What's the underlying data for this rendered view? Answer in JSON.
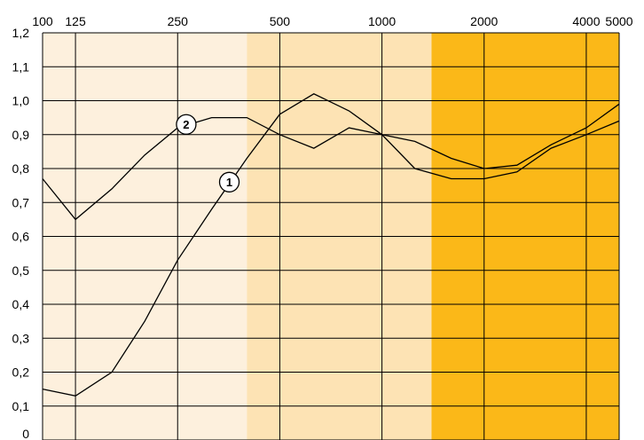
{
  "chart_data": {
    "type": "line",
    "x_scale": "log",
    "x_ticks": [
      "100",
      "125",
      "250",
      "500",
      "1000",
      "2000",
      "4000",
      "5000"
    ],
    "x_tick_values": [
      100,
      125,
      250,
      500,
      1000,
      2000,
      4000,
      5000
    ],
    "y_ticks": [
      "0",
      "0,1",
      "0,2",
      "0,3",
      "0,4",
      "0,5",
      "0,6",
      "0,7",
      "0,8",
      "0,9",
      "1,0",
      "1,1",
      "1,2"
    ],
    "y_tick_values": [
      0,
      0.1,
      0.2,
      0.3,
      0.4,
      0.5,
      0.6,
      0.7,
      0.8,
      0.9,
      1.0,
      1.1,
      1.2
    ],
    "xlim": [
      100,
      5000
    ],
    "ylim": [
      0,
      1.2
    ],
    "grid": true,
    "bands": [
      {
        "from": 100,
        "to": 400,
        "color": "#fdf0dd"
      },
      {
        "from": 400,
        "to": 1400,
        "color": "#fde3b4"
      },
      {
        "from": 1400,
        "to": 5000,
        "color": "#fbb818"
      }
    ],
    "series": [
      {
        "name": "1",
        "x": [
          100,
          125,
          160,
          200,
          250,
          315,
          400,
          500,
          630,
          800,
          1000,
          1250,
          1600,
          2000,
          2500,
          3150,
          4000,
          5000
        ],
        "y": [
          0.15,
          0.13,
          0.2,
          0.35,
          0.53,
          0.68,
          0.83,
          0.96,
          1.02,
          0.97,
          0.9,
          0.8,
          0.77,
          0.77,
          0.79,
          0.86,
          0.9,
          0.94
        ],
        "label_at": {
          "x": 355,
          "y": 0.76
        }
      },
      {
        "name": "2",
        "x": [
          100,
          125,
          160,
          200,
          250,
          315,
          400,
          500,
          630,
          800,
          1000,
          1250,
          1600,
          2000,
          2500,
          3150,
          4000,
          5000
        ],
        "y": [
          0.77,
          0.65,
          0.74,
          0.84,
          0.92,
          0.95,
          0.95,
          0.9,
          0.86,
          0.92,
          0.9,
          0.88,
          0.83,
          0.8,
          0.81,
          0.87,
          0.92,
          0.99
        ],
        "label_at": {
          "x": 265,
          "y": 0.93
        }
      }
    ]
  }
}
